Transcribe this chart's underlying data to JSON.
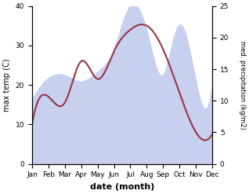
{
  "months": [
    "Jan",
    "Feb",
    "Mar",
    "Apr",
    "May",
    "Jun",
    "Jul",
    "Aug",
    "Sep",
    "Oct",
    "Nov",
    "Dec"
  ],
  "precipitation_mm": [
    10.0,
    13.5,
    14.0,
    13.0,
    14.5,
    18.0,
    25.0,
    21.0,
    14.0,
    22.0,
    13.0,
    12.0
  ],
  "temperature_c": [
    10.0,
    17.0,
    15.5,
    26.0,
    21.5,
    28.5,
    34.0,
    35.0,
    29.0,
    18.0,
    8.0,
    7.5
  ],
  "temp_color": "#993344",
  "precip_fill_color": "#c8d0f0",
  "ylabel_left": "max temp (C)",
  "ylabel_right": "med. precipitation (kg/m2)",
  "xlabel": "date (month)",
  "ylim_left": [
    0,
    40
  ],
  "ylim_right": [
    0,
    25
  ],
  "bg_color": "#ffffff"
}
